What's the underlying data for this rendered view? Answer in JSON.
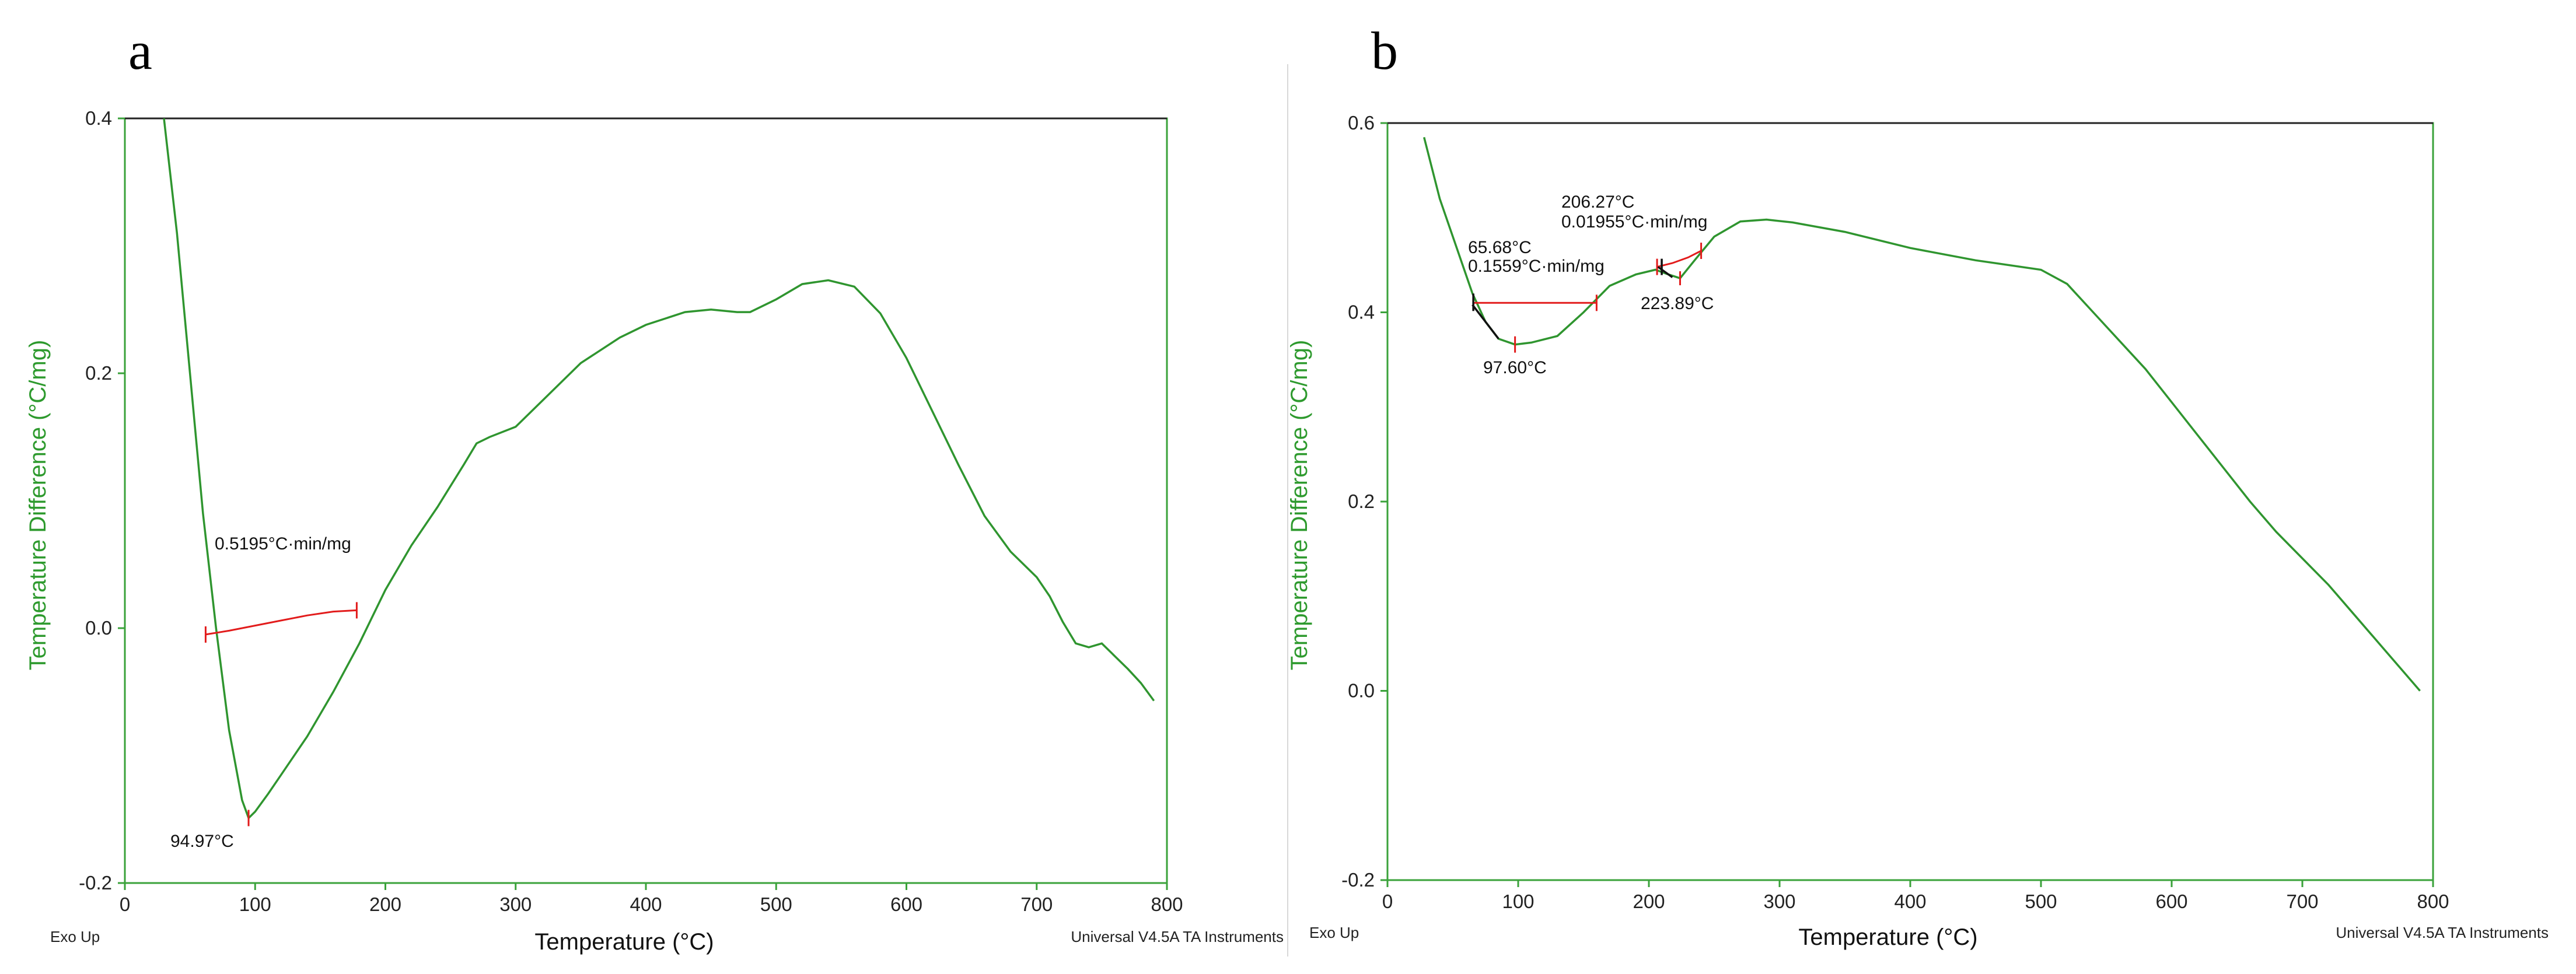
{
  "chart_data": [
    {
      "panel_label": "a",
      "type": "line",
      "xlabel": "Temperature (°C)",
      "ylabel": "Temperature Difference (°C/mg)",
      "xlim": [
        0,
        800
      ],
      "ylim": [
        -0.2,
        0.4
      ],
      "x_ticks": [
        "0",
        "100",
        "200",
        "300",
        "400",
        "500",
        "600",
        "700",
        "800"
      ],
      "y_ticks": [
        "-0.2",
        "0.0",
        "0.2",
        "0.4"
      ],
      "footer_left": "Exo Up",
      "footer_right": "Universal V4.5A TA Instruments",
      "series": [
        {
          "name": "DTA",
          "x": [
            30,
            40,
            50,
            60,
            70,
            80,
            90,
            95,
            100,
            110,
            120,
            140,
            160,
            180,
            200,
            220,
            240,
            260,
            270,
            280,
            300,
            320,
            350,
            380,
            400,
            430,
            450,
            470,
            480,
            500,
            520,
            540,
            560,
            580,
            600,
            620,
            640,
            660,
            680,
            700,
            710,
            720,
            730,
            740,
            750,
            760,
            770,
            780,
            790
          ],
          "values": [
            0.4,
            0.31,
            0.2,
            0.09,
            0.0,
            -0.08,
            -0.135,
            -0.149,
            -0.144,
            -0.13,
            -0.115,
            -0.085,
            -0.05,
            -0.012,
            0.03,
            0.065,
            0.095,
            0.128,
            0.145,
            0.15,
            0.158,
            0.178,
            0.208,
            0.228,
            0.238,
            0.248,
            0.25,
            0.248,
            0.248,
            0.258,
            0.27,
            0.273,
            0.268,
            0.247,
            0.212,
            0.17,
            0.128,
            0.088,
            0.06,
            0.04,
            0.025,
            0.005,
            -0.012,
            -0.015,
            -0.012,
            -0.022,
            -0.032,
            -0.043,
            -0.057
          ]
        }
      ],
      "annotations": {
        "area_label": "0.5195°C·min/mg",
        "peak_label": "94.97°C",
        "peak": [
          94.97,
          -0.149
        ],
        "baseline": {
          "x": [
            62,
            80,
            100,
            120,
            140,
            160,
            178
          ],
          "values": [
            -0.005,
            -0.002,
            0.002,
            0.006,
            0.01,
            0.013,
            0.014
          ]
        }
      }
    },
    {
      "panel_label": "b",
      "type": "line",
      "xlabel": "Temperature (°C)",
      "ylabel": "Temperature Difference (°C/mg)",
      "xlim": [
        0,
        800
      ],
      "ylim": [
        -0.2,
        0.6
      ],
      "x_ticks": [
        "0",
        "100",
        "200",
        "300",
        "400",
        "500",
        "600",
        "700",
        "800"
      ],
      "y_ticks": [
        "-0.2",
        "0.0",
        "0.2",
        "0.4",
        "0.6"
      ],
      "footer_left": "Exo Up",
      "footer_right": "Universal V4.5A TA Instruments",
      "series": [
        {
          "name": "DTA",
          "x": [
            28,
            40,
            55,
            65,
            75,
            85,
            97.6,
            110,
            130,
            150,
            170,
            190,
            205,
            215,
            223.9,
            235,
            250,
            270,
            290,
            310,
            350,
            400,
            450,
            500,
            520,
            540,
            560,
            580,
            600,
            620,
            640,
            660,
            680,
            700,
            720,
            740,
            760,
            780,
            790
          ],
          "values": [
            0.585,
            0.52,
            0.46,
            0.42,
            0.39,
            0.372,
            0.366,
            0.368,
            0.375,
            0.4,
            0.428,
            0.44,
            0.445,
            0.44,
            0.436,
            0.455,
            0.48,
            0.496,
            0.498,
            0.495,
            0.485,
            0.468,
            0.455,
            0.445,
            0.43,
            0.4,
            0.37,
            0.34,
            0.305,
            0.27,
            0.235,
            0.2,
            0.168,
            0.14,
            0.112,
            0.08,
            0.048,
            0.016,
            0.0
          ]
        }
      ],
      "annotations": {
        "onset1_label_temp": "65.68°C",
        "onset1_label_area": "0.1559°C·min/mg",
        "peak1_label": "97.60°C",
        "onset2_label_temp": "206.27°C",
        "onset2_label_area": "0.01955°C·min/mg",
        "peak2_label": "223.89°C",
        "baseline1": {
          "x": [
            65.68,
            160
          ],
          "values": [
            0.41,
            0.41
          ]
        },
        "peak1": [
          97.6,
          0.366
        ],
        "baseline2": {
          "x": [
            206.27,
            218,
            230,
            240
          ],
          "values": [
            0.448,
            0.452,
            0.458,
            0.465
          ]
        },
        "peak2": [
          223.89,
          0.436
        ]
      }
    }
  ]
}
